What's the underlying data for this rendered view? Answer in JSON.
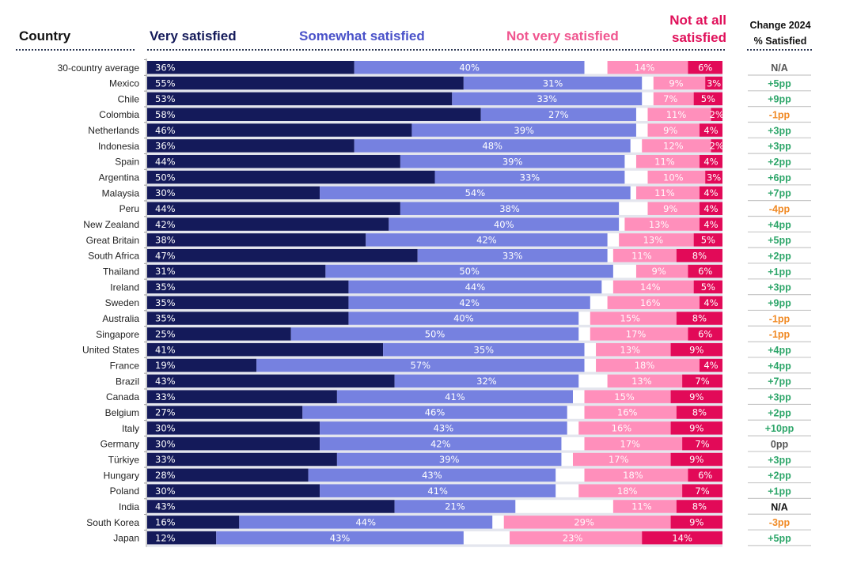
{
  "headers": {
    "country": "Country",
    "very_satisfied": "Very satisfied",
    "somewhat_satisfied": "Somewhat satisfied",
    "not_very_satisfied": "Not very satisfied",
    "not_at_all_line1": "Not at all",
    "not_at_all_line2": "satisfied",
    "change_line1": "Change 2024",
    "change_line2": "% Satisfied"
  },
  "colors": {
    "very_satisfied": "#141a5a",
    "somewhat_satisfied": "#7681e0",
    "not_very_satisfied": "#ff8fbb",
    "not_at_all_satisfied": "#e20a58",
    "change_positive": "#2ea66a",
    "change_negative": "#f08a25",
    "change_neutral": "#555555",
    "change_na_first": "#555555",
    "change_na": "#111111"
  },
  "chart_data": {
    "type": "bar",
    "orientation": "horizontal",
    "stacked": "diverging",
    "title": "",
    "xlabel": "",
    "ylabel": "Country",
    "xlim": [
      0,
      100
    ],
    "legend": "top",
    "grid": false,
    "categories": [
      "30-country average",
      "Mexico",
      "Chile",
      "Colombia",
      "Netherlands",
      "Indonesia",
      "Spain",
      "Argentina",
      "Malaysia",
      "Peru",
      "New Zealand",
      "Great Britain",
      "South Africa",
      "Thailand",
      "Ireland",
      "Sweden",
      "Australia",
      "Singapore",
      "United States",
      "France",
      "Brazil",
      "Canada",
      "Belgium",
      "Italy",
      "Germany",
      "Türkiye",
      "Hungary",
      "Poland",
      "India",
      "South Korea",
      "Japan"
    ],
    "series": [
      {
        "name": "Very satisfied",
        "values": [
          36,
          55,
          53,
          58,
          46,
          36,
          44,
          50,
          30,
          44,
          42,
          38,
          47,
          31,
          35,
          35,
          35,
          25,
          41,
          19,
          43,
          33,
          27,
          30,
          30,
          33,
          28,
          30,
          43,
          16,
          12
        ]
      },
      {
        "name": "Somewhat satisfied",
        "values": [
          40,
          31,
          33,
          27,
          39,
          48,
          39,
          33,
          54,
          38,
          40,
          42,
          33,
          50,
          44,
          42,
          40,
          50,
          35,
          57,
          32,
          41,
          46,
          43,
          42,
          39,
          43,
          41,
          21,
          44,
          43
        ]
      },
      {
        "name": "Not very satisfied",
        "values": [
          14,
          9,
          7,
          11,
          9,
          12,
          11,
          10,
          11,
          9,
          13,
          13,
          11,
          9,
          14,
          16,
          15,
          17,
          13,
          18,
          13,
          15,
          16,
          16,
          17,
          17,
          18,
          18,
          11,
          29,
          23
        ]
      },
      {
        "name": "Not at all satisfied",
        "values": [
          6,
          3,
          5,
          2,
          4,
          2,
          4,
          3,
          4,
          4,
          4,
          5,
          8,
          6,
          5,
          4,
          8,
          6,
          9,
          4,
          7,
          9,
          8,
          9,
          7,
          9,
          6,
          7,
          8,
          9,
          14
        ]
      }
    ],
    "change_2024": [
      "N/A",
      "+5pp",
      "+9pp",
      "-1pp",
      "+3pp",
      "+3pp",
      "+2pp",
      "+6pp",
      "+7pp",
      "-4pp",
      "+4pp",
      "+5pp",
      "+2pp",
      "+1pp",
      "+3pp",
      "+9pp",
      "-1pp",
      "-1pp",
      "+4pp",
      "+4pp",
      "+7pp",
      "+3pp",
      "+2pp",
      "+10pp",
      "0pp",
      "+3pp",
      "+2pp",
      "+1pp",
      "N/A",
      "-3pp",
      "+5pp"
    ]
  }
}
